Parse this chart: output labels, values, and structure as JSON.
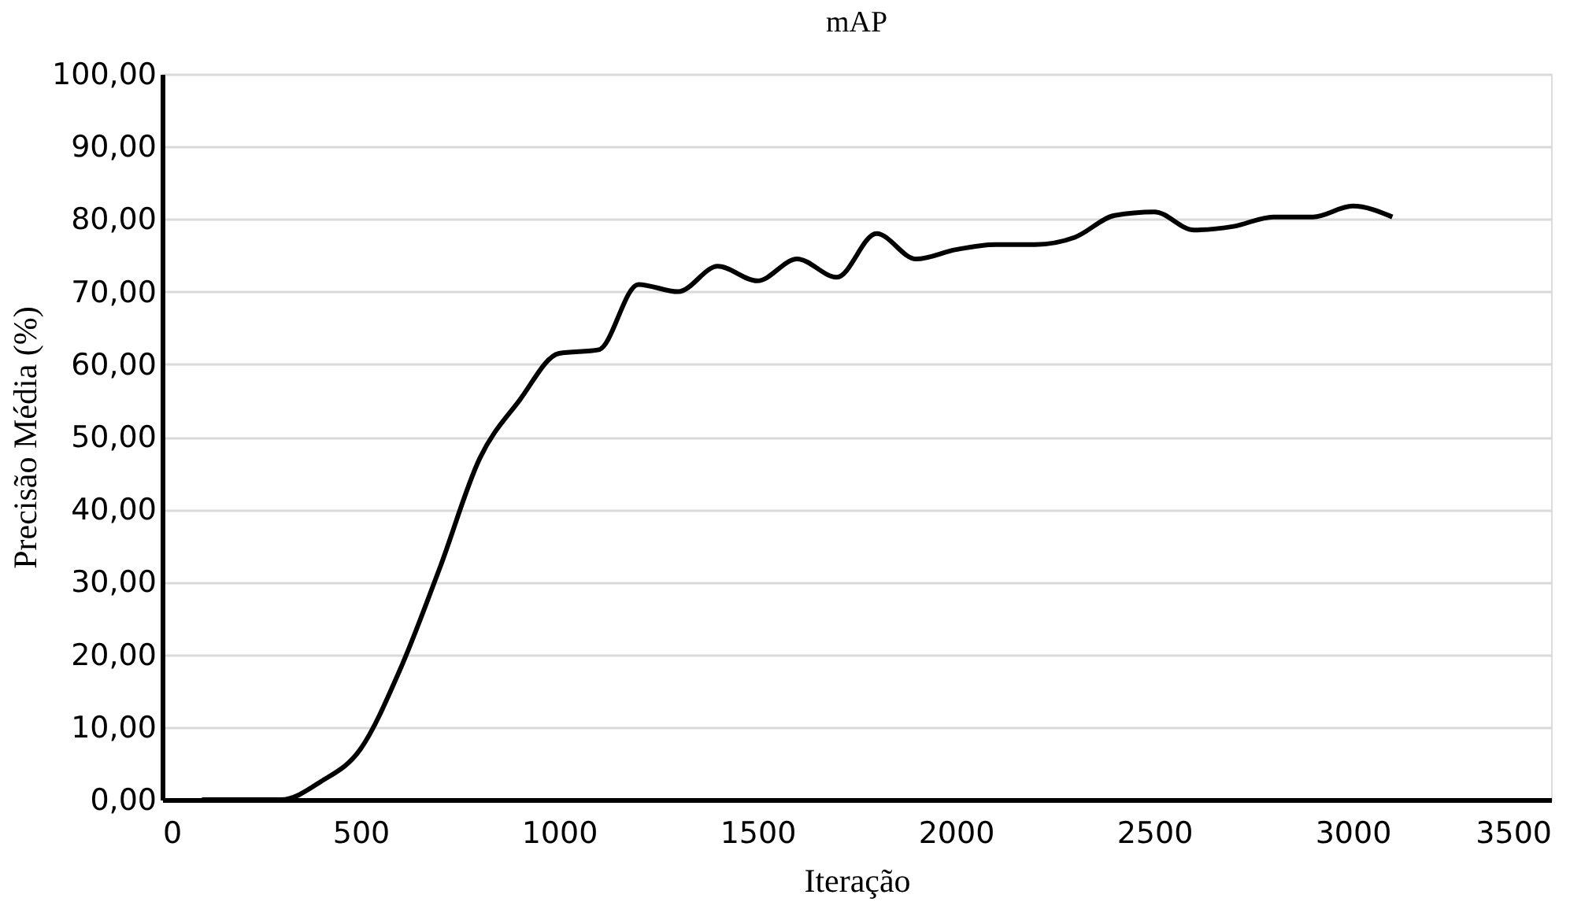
{
  "chart_data": {
    "type": "line",
    "title": "mAP",
    "xlabel": "Iteração",
    "ylabel": "Precisão Média (%)",
    "x": [
      100,
      200,
      300,
      400,
      500,
      600,
      700,
      800,
      900,
      1000,
      1100,
      1200,
      1300,
      1400,
      1500,
      1600,
      1700,
      1800,
      1900,
      2000,
      2100,
      2200,
      2300,
      2400,
      2500,
      2600,
      2700,
      2800,
      2900,
      3000,
      3100
    ],
    "series": [
      {
        "color": "#000000",
        "values": [
          0,
          0,
          0,
          2.5,
          7,
          18,
          32,
          47,
          55,
          61.5,
          62,
          71,
          70,
          73.5,
          71.5,
          74.5,
          72,
          78,
          74.5,
          75.8,
          76.5,
          76.5,
          77.5,
          80.5,
          81,
          78.5,
          79,
          80.3,
          80.3,
          81.8,
          80.3
        ]
      }
    ],
    "xlim": [
      0,
      3500
    ],
    "xticks": [
      0,
      500,
      1000,
      1500,
      2000,
      2500,
      3000,
      3500
    ],
    "ylim": [
      0,
      100
    ],
    "yticks": [
      {
        "value": 0,
        "label": "0,00"
      },
      {
        "value": 10,
        "label": "10,00"
      },
      {
        "value": 20,
        "label": "20,00"
      },
      {
        "value": 30,
        "label": "30,00"
      },
      {
        "value": 40,
        "label": "40,00"
      },
      {
        "value": 50,
        "label": "50,00"
      },
      {
        "value": 60,
        "label": "60,00"
      },
      {
        "value": 70,
        "label": "70,00"
      },
      {
        "value": 80,
        "label": "80,00"
      },
      {
        "value": 90,
        "label": "90,00"
      },
      {
        "value": 100,
        "label": "100,00"
      }
    ],
    "grid": "y",
    "marker": "none",
    "line_style": "solid"
  }
}
